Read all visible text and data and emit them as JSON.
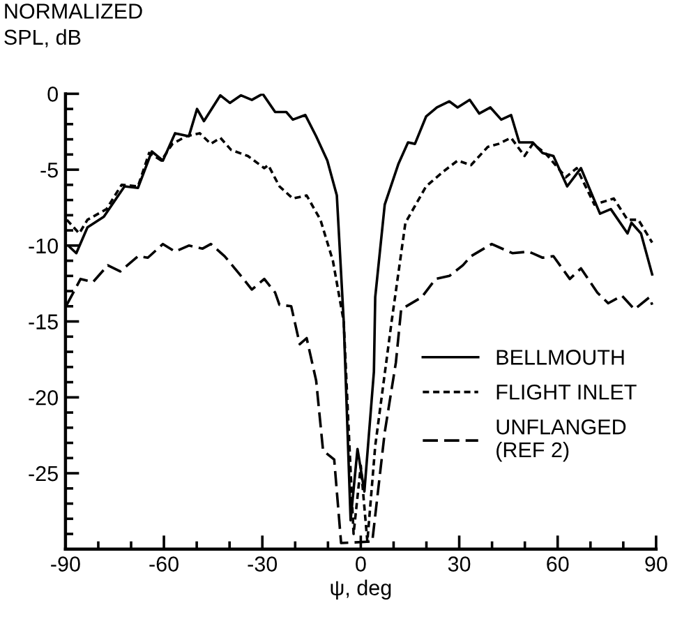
{
  "chart_data": {
    "type": "line",
    "ylabel": "NORMALIZED\nSPL, dB",
    "xlabel": "ψ, deg",
    "xlim": [
      -90,
      90
    ],
    "ylim": [
      -30,
      0
    ],
    "xticks": [
      -90,
      {
        "value": -80,
        "label": null
      },
      {
        "value": -70,
        "label": null
      },
      -60,
      {
        "value": -50,
        "label": null
      },
      {
        "value": -40,
        "label": null
      },
      -30,
      {
        "value": -20,
        "label": null
      },
      {
        "value": -10,
        "label": null
      },
      0,
      {
        "value": 10,
        "label": null
      },
      {
        "value": 20,
        "label": null
      },
      30,
      {
        "value": 40,
        "label": null
      },
      {
        "value": 50,
        "label": null
      },
      60,
      {
        "value": 70,
        "label": null
      },
      {
        "value": 80,
        "label": null
      },
      90
    ],
    "yticks": [
      {
        "value": -29,
        "label": null
      },
      {
        "value": -28,
        "label": null
      },
      {
        "value": -27,
        "label": null
      },
      {
        "value": -26,
        "label": null
      },
      -25,
      {
        "value": -24,
        "label": null
      },
      {
        "value": -23,
        "label": null
      },
      {
        "value": -22,
        "label": null
      },
      {
        "value": -21,
        "label": null
      },
      -20,
      {
        "value": -19,
        "label": null
      },
      {
        "value": -18,
        "label": null
      },
      {
        "value": -17,
        "label": null
      },
      {
        "value": -16,
        "label": null
      },
      -15,
      {
        "value": -14,
        "label": null
      },
      {
        "value": -13,
        "label": null
      },
      {
        "value": -12,
        "label": null
      },
      {
        "value": -11,
        "label": null
      },
      -10,
      {
        "value": -9,
        "label": null
      },
      {
        "value": -8,
        "label": null
      },
      {
        "value": -7,
        "label": null
      },
      {
        "value": -6,
        "label": null
      },
      -5,
      {
        "value": -4,
        "label": null
      },
      {
        "value": -3,
        "label": null
      },
      {
        "value": -2,
        "label": null
      },
      {
        "value": -1,
        "label": null
      },
      0
    ],
    "grid": false,
    "legend": "bottom right",
    "marker": "none",
    "series": [
      {
        "name": "BELLMOUTH",
        "color": "#000000",
        "line_style": "solid",
        "x": [
          -88.7,
          -86.7,
          -83.3,
          -78.3,
          -72,
          -67.9,
          -63.7,
          -60.3,
          -56.6,
          -52.4,
          -49.9,
          -47.8,
          -42.8,
          -39.9,
          -36.5,
          -33.2,
          -29.9,
          -26.1,
          -22.7,
          -20.7,
          -16.9,
          -13.6,
          -10.2,
          -7.3,
          -5.2,
          -3.1,
          -1.0,
          1.1,
          4.0,
          4.4,
          7.3,
          11.5,
          14.4,
          16.5,
          19.9,
          23.2,
          27.0,
          29.5,
          33.2,
          36.1,
          39.5,
          42.8,
          45.8,
          48.3,
          52.4,
          55.4,
          58.7,
          62.9,
          67.1,
          72.9,
          76.2,
          81.3,
          82.5,
          85.4,
          88.8
        ],
        "values": [
          -10.1,
          -10.5,
          -8.8,
          -8.1,
          -6.1,
          -6.2,
          -3.8,
          -4.4,
          -2.6,
          -2.8,
          -1.0,
          -1.8,
          -0.1,
          -0.6,
          -0.1,
          -0.4,
          0,
          -1.2,
          -1.2,
          -1.7,
          -1.4,
          -2.8,
          -4.4,
          -6.7,
          -15,
          -28.1,
          -23.4,
          -26.2,
          -18.3,
          -13.4,
          -7.3,
          -4.6,
          -3.2,
          -3.3,
          -1.5,
          -0.9,
          -0.5,
          -0.9,
          -0.4,
          -1.3,
          -0.9,
          -1.7,
          -1.4,
          -3.2,
          -3.2,
          -3.9,
          -4.1,
          -6.1,
          -4.9,
          -7.9,
          -7.6,
          -9.2,
          -8.5,
          -9.2,
          -11.9
        ]
      },
      {
        "name": "FLIGHT INLET",
        "color": "#000000",
        "line_style": "dotted",
        "x": [
          -89.6,
          -85.8,
          -83.3,
          -77.5,
          -72.9,
          -67.9,
          -64.5,
          -60.8,
          -57.4,
          -53.2,
          -49.1,
          -45.7,
          -42.8,
          -39.5,
          -34.4,
          -29.4,
          -28.2,
          -24.8,
          -20.7,
          -16.5,
          -12.3,
          -8.5,
          -5.2,
          -3.5,
          -2.2,
          0,
          2.0,
          4.4,
          9.4,
          13.6,
          19.9,
          25.3,
          29.5,
          33.6,
          38.7,
          42.0,
          45.8,
          49.9,
          52.4,
          56.2,
          62.5,
          65.8,
          71.2,
          77.1,
          81.3,
          84.6,
          88.8
        ],
        "values": [
          -8.3,
          -9.2,
          -8.3,
          -7.6,
          -6.0,
          -6.1,
          -3.9,
          -4.4,
          -3.3,
          -2.8,
          -2.6,
          -3.3,
          -2.9,
          -3.7,
          -4.1,
          -4.9,
          -4.7,
          -6.1,
          -6.9,
          -6.7,
          -8.3,
          -11.0,
          -15,
          -23,
          -29,
          -24.5,
          -29.5,
          -23.2,
          -15,
          -8.5,
          -6.1,
          -5.1,
          -4.4,
          -4.7,
          -3.5,
          -3.3,
          -2.9,
          -4.1,
          -3.3,
          -3.9,
          -5.5,
          -4.9,
          -7.3,
          -6.9,
          -8.3,
          -8.3,
          -9.8
        ]
      },
      {
        "name": "UNFLANGED\n(REF 2)",
        "color": "#000000",
        "line_style": "dashed",
        "x": [
          -89.6,
          -85.4,
          -81.6,
          -77.1,
          -73.3,
          -67.9,
          -64.9,
          -60.3,
          -56.6,
          -52.4,
          -48.2,
          -45.7,
          -41.5,
          -36.5,
          -33.2,
          -29.4,
          -26.1,
          -24.8,
          -21.2,
          -18.6,
          -16.5,
          -13.6,
          -11.5,
          -8.1,
          -6.0,
          3.5,
          7.3,
          10.7,
          12.3,
          18.6,
          22.8,
          27.0,
          31.1,
          33.6,
          39.9,
          46.2,
          51.2,
          55.4,
          58.7,
          63.7,
          67.1,
          72.1,
          75.4,
          79.6,
          83.4,
          88.0,
          88.8
        ],
        "values": [
          -13.9,
          -12.2,
          -12.4,
          -11.3,
          -11.7,
          -10.7,
          -10.8,
          -9.9,
          -10.4,
          -10.0,
          -10.2,
          -9.9,
          -10.7,
          -12.0,
          -12.9,
          -12.2,
          -13.1,
          -13.9,
          -14.0,
          -16.5,
          -16.1,
          -18.9,
          -23.5,
          -24.1,
          -29.6,
          -29.5,
          -22.3,
          -17.7,
          -14.2,
          -13.4,
          -12.2,
          -12.0,
          -11.3,
          -10.7,
          -9.9,
          -10.5,
          -10.4,
          -10.8,
          -10.7,
          -12.2,
          -11.5,
          -13.1,
          -13.8,
          -13.3,
          -14.2,
          -13.4,
          -13.9
        ]
      }
    ]
  }
}
